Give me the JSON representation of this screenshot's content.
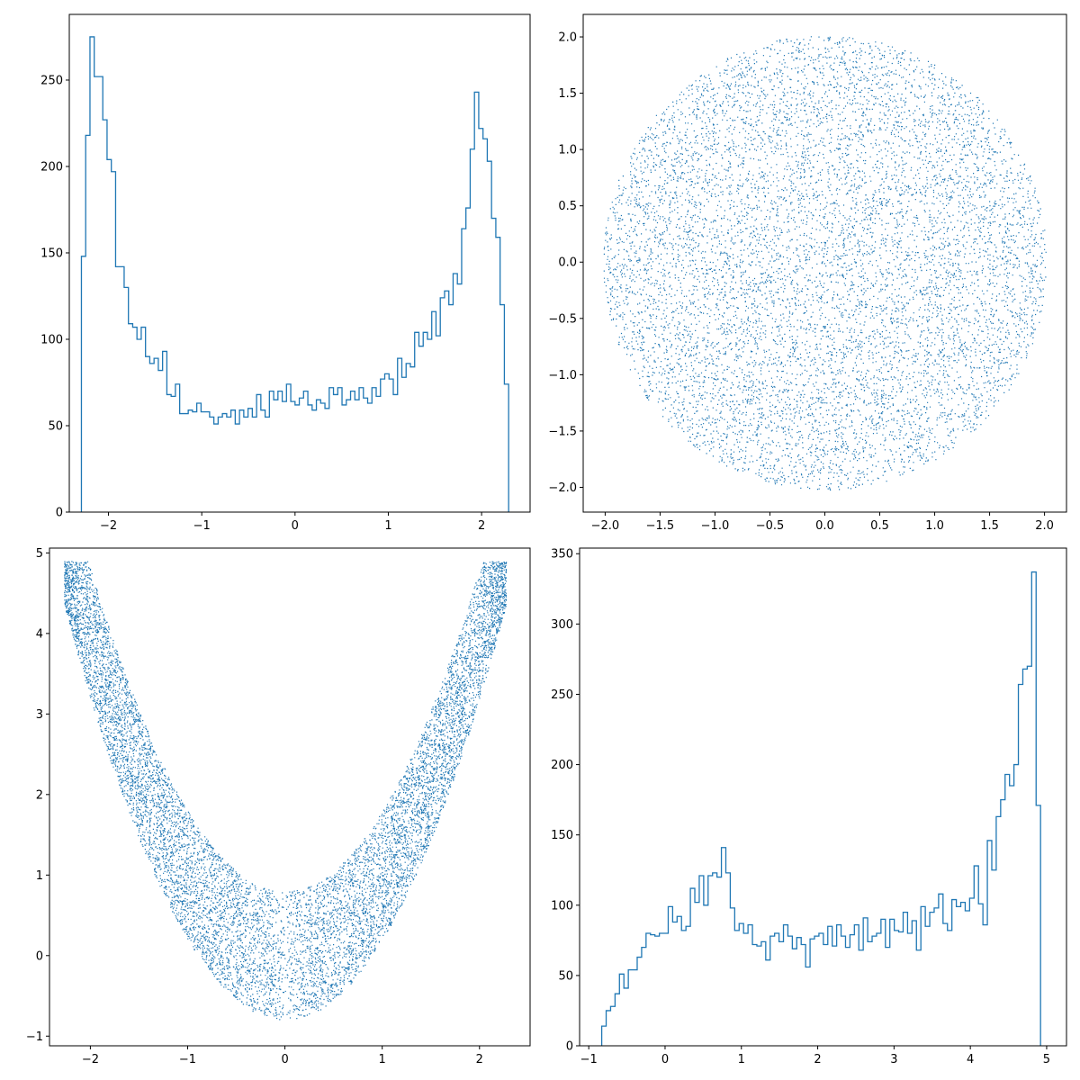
{
  "figure": {
    "layout": "2x2",
    "line_color": "#1f77b4",
    "point_color": "#1f77b4"
  },
  "chart_data": [
    {
      "id": "hist_x",
      "type": "histogram",
      "title": "",
      "xlabel": "",
      "ylabel": "",
      "xlim": [
        -2.42,
        2.52
      ],
      "ylim": [
        0,
        288
      ],
      "xticks": [
        -2,
        -1,
        0,
        1,
        2
      ],
      "xtick_labels": [
        "−2",
        "−1",
        "0",
        "1",
        "2"
      ],
      "yticks": [
        0,
        50,
        100,
        150,
        200,
        250
      ],
      "ytick_labels": [
        "0",
        "50",
        "100",
        "150",
        "200",
        "250"
      ],
      "grid": false,
      "legend": "none",
      "bin_range": [
        -2.29,
        2.29
      ],
      "counts": [
        148,
        218,
        275,
        252,
        252,
        227,
        204,
        197,
        142,
        142,
        130,
        109,
        107,
        100,
        107,
        90,
        86,
        89,
        82,
        93,
        68,
        67,
        74,
        57,
        57,
        59,
        58,
        63,
        58,
        58,
        55,
        51,
        55,
        57,
        55,
        59,
        51,
        59,
        55,
        60,
        55,
        68,
        59,
        55,
        70,
        65,
        70,
        64,
        74,
        64,
        62,
        66,
        70,
        62,
        59,
        65,
        63,
        60,
        72,
        68,
        72,
        62,
        65,
        70,
        65,
        72,
        66,
        63,
        72,
        67,
        77,
        80,
        77,
        68,
        89,
        78,
        86,
        84,
        104,
        96,
        104,
        100,
        116,
        102,
        124,
        128,
        120,
        138,
        132,
        164,
        176,
        210,
        243,
        222,
        216,
        203,
        170,
        159,
        120,
        74
      ]
    },
    {
      "id": "scatter_xy",
      "type": "scatter",
      "title": "",
      "xlabel": "",
      "ylabel": "",
      "xlim": [
        -2.2,
        2.2
      ],
      "ylim": [
        -2.22,
        2.2
      ],
      "xticks": [
        -2.0,
        -1.5,
        -1.0,
        -0.5,
        0.0,
        0.5,
        1.0,
        1.5,
        2.0
      ],
      "xtick_labels": [
        "−2.0",
        "−1.5",
        "−1.0",
        "−0.5",
        "0.0",
        "0.5",
        "1.0",
        "1.5",
        "2.0"
      ],
      "yticks": [
        -2.0,
        -1.5,
        -1.0,
        -0.5,
        0.0,
        0.5,
        1.0,
        1.5,
        2.0
      ],
      "ytick_labels": [
        "−2.0",
        "−1.5",
        "−1.0",
        "−0.5",
        "0.0",
        "0.5",
        "1.0",
        "1.5",
        "2.0"
      ],
      "grid": false,
      "legend": "none",
      "shape": "disk",
      "center": [
        0,
        0
      ],
      "radius": 2.02,
      "point_count": 9000
    },
    {
      "id": "scatter_x_z",
      "type": "scatter",
      "title": "",
      "xlabel": "",
      "ylabel": "",
      "xlim": [
        -2.42,
        2.52
      ],
      "ylim": [
        -1.12,
        5.06
      ],
      "xticks": [
        -2,
        -1,
        0,
        1,
        2
      ],
      "xtick_labels": [
        "−2",
        "−1",
        "0",
        "1",
        "2"
      ],
      "yticks": [
        -1,
        0,
        1,
        2,
        3,
        4,
        5
      ],
      "ytick_labels": [
        "−1",
        "0",
        "1",
        "2",
        "3",
        "4",
        "5"
      ],
      "grid": false,
      "legend": "none",
      "shape": "parabolic band",
      "band_curve_lower": "z = x^2 - 0.8",
      "band_curve_upper": "z = min(x^2 + 0.8, 4.9)",
      "x_range": [
        -2.27,
        2.27
      ],
      "point_count": 10000
    },
    {
      "id": "hist_z",
      "type": "histogram",
      "title": "",
      "xlabel": "",
      "ylabel": "",
      "xlim": [
        -1.12,
        5.26
      ],
      "ylim": [
        0,
        354
      ],
      "xticks": [
        -1,
        0,
        1,
        2,
        3,
        4,
        5
      ],
      "xtick_labels": [
        "−1",
        "0",
        "1",
        "2",
        "3",
        "4",
        "5"
      ],
      "yticks": [
        0,
        50,
        100,
        150,
        200,
        250,
        300,
        350
      ],
      "ytick_labels": [
        "0",
        "50",
        "100",
        "150",
        "200",
        "250",
        "300",
        "350"
      ],
      "grid": false,
      "legend": "none",
      "bin_range": [
        -0.83,
        4.92
      ],
      "counts": [
        14,
        25,
        28,
        37,
        51,
        41,
        54,
        54,
        63,
        70,
        80,
        79,
        78,
        80,
        80,
        99,
        88,
        92,
        82,
        85,
        112,
        102,
        121,
        100,
        121,
        123,
        120,
        141,
        123,
        98,
        82,
        87,
        80,
        86,
        72,
        71,
        74,
        61,
        78,
        80,
        74,
        86,
        78,
        69,
        77,
        72,
        56,
        76,
        78,
        80,
        72,
        85,
        71,
        86,
        78,
        70,
        79,
        86,
        68,
        91,
        74,
        78,
        80,
        90,
        70,
        90,
        82,
        81,
        95,
        80,
        89,
        68,
        99,
        85,
        95,
        98,
        108,
        87,
        82,
        104,
        99,
        102,
        96,
        105,
        128,
        101,
        86,
        146,
        125,
        163,
        175,
        193,
        185,
        200,
        257,
        268,
        270,
        337,
        171
      ]
    }
  ]
}
